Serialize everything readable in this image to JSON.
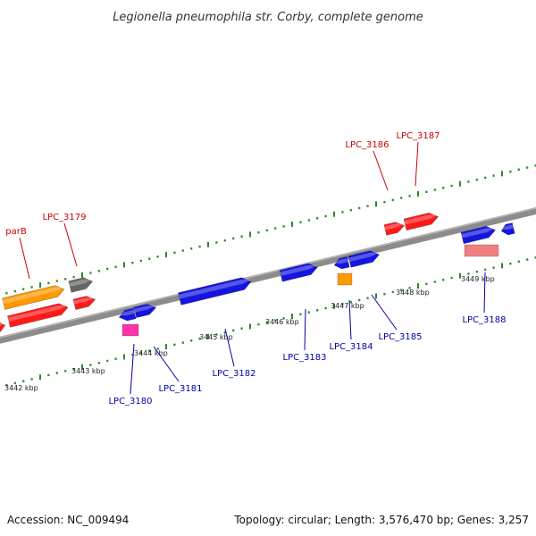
{
  "title": "Legionella pneumophila str. Corby, complete genome",
  "footer": {
    "accession": "Accession: NC_009494",
    "stats": "Topology: circular; Length: 3,576,470 bp; Genes: 3,257"
  },
  "colors": {
    "backbone": "#8c8c8c",
    "tick": "#2a8a2a",
    "label_top": "#cc0000",
    "label_bottom": "#0000aa",
    "gene_red": "#ff1a1a",
    "gene_blue": "#1515e0",
    "gene_orange": "#ff9900",
    "gene_gray": "#666666",
    "gene_pink": "#ff33aa",
    "gene_salmon": "#f08080"
  },
  "scale_labels": [
    "3442 kbp",
    "3443 kbp",
    "3444 kbp",
    "3445 kbp",
    "3446 kbp",
    "3447 kbp",
    "3448 kbp",
    "3449 kbp"
  ],
  "gene_labels": {
    "top": [
      "parB",
      "LPC_3179",
      "LPC_3186",
      "LPC_3187"
    ],
    "bottom": [
      "LPC_3180",
      "LPC_3181",
      "LPC_3182",
      "LPC_3183",
      "LPC_3184",
      "LPC_3185",
      "LPC_3188"
    ]
  }
}
